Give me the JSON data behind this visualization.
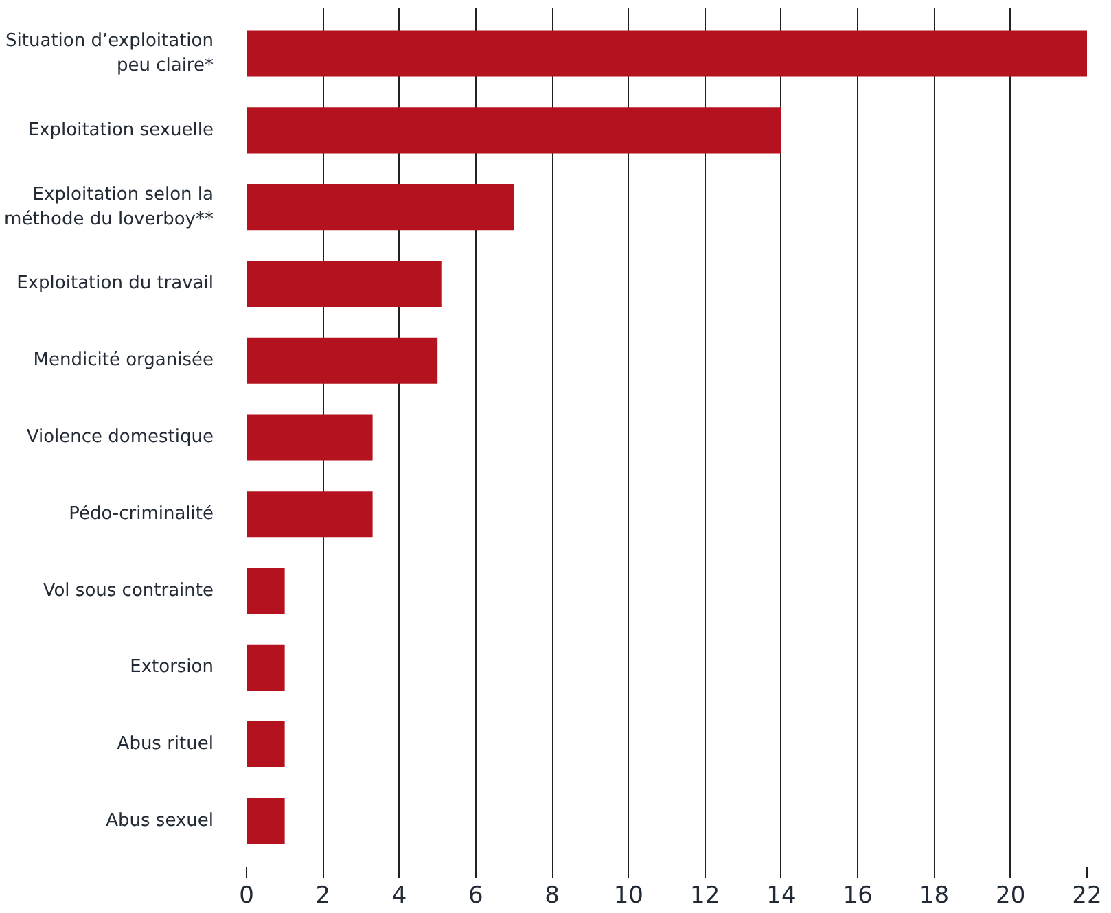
{
  "chart_data": {
    "type": "bar",
    "orientation": "horizontal",
    "categories": [
      "Situation d’exploitation\npeu claire*",
      "Exploitation sexuelle",
      "Exploitation selon la\nméthode du loverboy**",
      "Exploitation du travail",
      "Mendicité organisée",
      "Violence domestique",
      "Pédo-criminalité",
      "Vol sous contrainte",
      "Extorsion",
      "Abus rituel",
      "Abus sexuel"
    ],
    "values": [
      22,
      14,
      7,
      5.1,
      5.0,
      3.3,
      3.3,
      1,
      1,
      1,
      1
    ],
    "color": "#b5121f",
    "xlim": [
      0,
      22
    ],
    "xticks": [
      0,
      2,
      4,
      6,
      8,
      10,
      12,
      14,
      16,
      18,
      20,
      22
    ],
    "grid": "x"
  }
}
